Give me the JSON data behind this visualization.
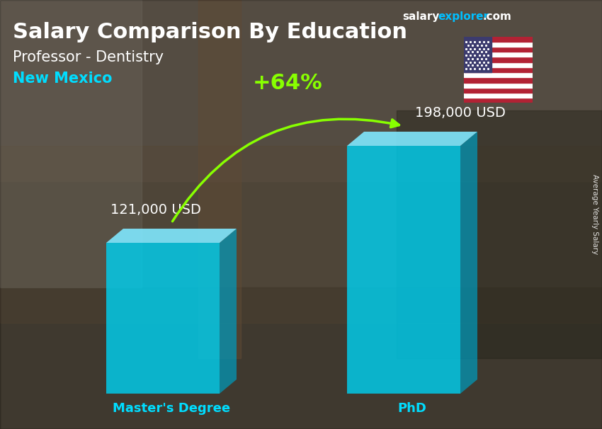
{
  "title": "Salary Comparison By Education",
  "subtitle": "Professor - Dentistry",
  "location": "New Mexico",
  "categories": [
    "Master's Degree",
    "PhD"
  ],
  "values": [
    121000,
    198000
  ],
  "value_labels": [
    "121,000 USD",
    "198,000 USD"
  ],
  "percent_change": "+64%",
  "bar_color_front": "#00CFEF",
  "bar_color_top": "#80E8FF",
  "bar_color_side": "#0099BB",
  "bar_color_right": "#007799",
  "title_color": "#FFFFFF",
  "subtitle_color": "#FFFFFF",
  "location_color": "#00DDFF",
  "value_label_color": "#FFFFFF",
  "percent_color": "#88FF00",
  "xlabel_color": "#00DDFF",
  "side_label": "Average Yearly Salary",
  "brand_white": "#FFFFFF",
  "brand_cyan": "#00BFFF",
  "bg_colors": [
    "#8a7a6a",
    "#7a6a5a",
    "#6a5a4a",
    "#9a8a7a",
    "#7a6a5a"
  ],
  "figsize": [
    8.5,
    6.06
  ],
  "dpi": 100
}
